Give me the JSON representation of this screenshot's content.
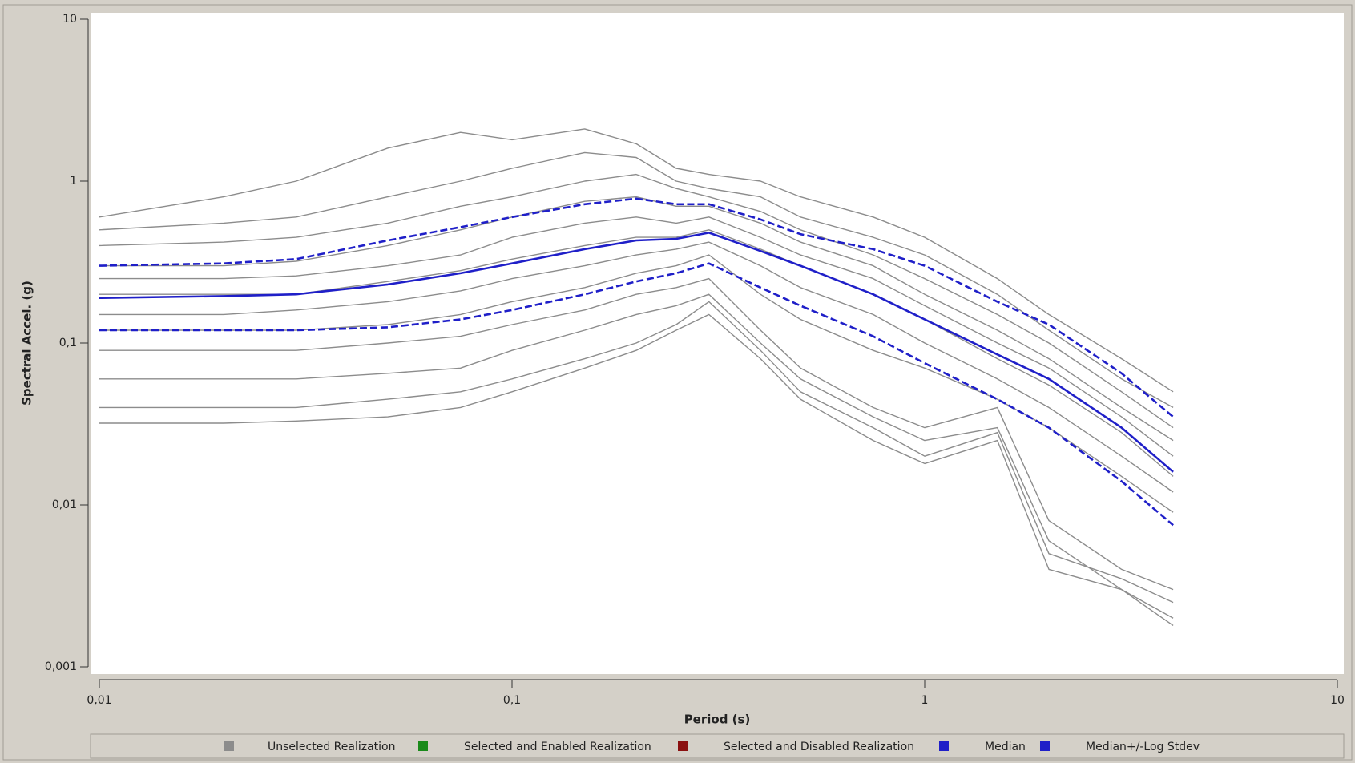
{
  "chart_data": {
    "type": "line",
    "log_x": true,
    "log_y": true,
    "xlabel": "Period (s)",
    "ylabel": "Spectral Accel. (g)",
    "xlim": [
      0.01,
      10
    ],
    "ylim": [
      0.001,
      10
    ],
    "xticks": [
      {
        "value": 0.01,
        "label": "0,01"
      },
      {
        "value": 0.1,
        "label": "0,1"
      },
      1,
      10
    ],
    "yticks": [
      {
        "value": 0.001,
        "label": "0,001"
      },
      {
        "value": 0.01,
        "label": "0,01"
      },
      {
        "value": 0.1,
        "label": "0,1"
      },
      1,
      10
    ],
    "x": [
      0.01,
      0.02,
      0.03,
      0.05,
      0.075,
      0.1,
      0.15,
      0.2,
      0.25,
      0.3,
      0.4,
      0.5,
      0.75,
      1,
      1.5,
      2,
      3,
      4
    ],
    "series": [
      {
        "name": "Unselected Realization",
        "color": "#8c8c8c",
        "style": "solid",
        "lines": [
          [
            0.6,
            0.8,
            1.0,
            1.6,
            2.0,
            1.8,
            2.1,
            1.7,
            1.2,
            1.1,
            1.0,
            0.8,
            0.6,
            0.45,
            0.25,
            0.15,
            0.08,
            0.05
          ],
          [
            0.5,
            0.55,
            0.6,
            0.8,
            1.0,
            1.2,
            1.5,
            1.4,
            1.0,
            0.9,
            0.8,
            0.6,
            0.45,
            0.35,
            0.2,
            0.12,
            0.06,
            0.04
          ],
          [
            0.4,
            0.42,
            0.45,
            0.55,
            0.7,
            0.8,
            1.0,
            1.1,
            0.9,
            0.8,
            0.65,
            0.5,
            0.35,
            0.25,
            0.15,
            0.1,
            0.05,
            0.03
          ],
          [
            0.3,
            0.3,
            0.32,
            0.4,
            0.5,
            0.6,
            0.75,
            0.8,
            0.7,
            0.7,
            0.55,
            0.42,
            0.3,
            0.2,
            0.12,
            0.08,
            0.04,
            0.025
          ],
          [
            0.25,
            0.25,
            0.26,
            0.3,
            0.35,
            0.45,
            0.55,
            0.6,
            0.55,
            0.6,
            0.45,
            0.35,
            0.25,
            0.17,
            0.1,
            0.07,
            0.035,
            0.02
          ],
          [
            0.2,
            0.2,
            0.2,
            0.24,
            0.28,
            0.33,
            0.4,
            0.45,
            0.45,
            0.5,
            0.38,
            0.3,
            0.2,
            0.14,
            0.08,
            0.055,
            0.028,
            0.015
          ],
          [
            0.15,
            0.15,
            0.16,
            0.18,
            0.21,
            0.25,
            0.3,
            0.35,
            0.38,
            0.42,
            0.3,
            0.22,
            0.15,
            0.1,
            0.06,
            0.04,
            0.02,
            0.012
          ],
          [
            0.12,
            0.12,
            0.12,
            0.13,
            0.15,
            0.18,
            0.22,
            0.27,
            0.3,
            0.35,
            0.2,
            0.14,
            0.09,
            0.07,
            0.045,
            0.03,
            0.015,
            0.009
          ],
          [
            0.09,
            0.09,
            0.09,
            0.1,
            0.11,
            0.13,
            0.16,
            0.2,
            0.22,
            0.25,
            0.12,
            0.07,
            0.04,
            0.03,
            0.04,
            0.008,
            0.004,
            0.003
          ],
          [
            0.06,
            0.06,
            0.06,
            0.065,
            0.07,
            0.09,
            0.12,
            0.15,
            0.17,
            0.2,
            0.1,
            0.06,
            0.035,
            0.025,
            0.03,
            0.006,
            0.003,
            0.002
          ],
          [
            0.04,
            0.04,
            0.04,
            0.045,
            0.05,
            0.06,
            0.08,
            0.1,
            0.13,
            0.18,
            0.09,
            0.05,
            0.03,
            0.02,
            0.028,
            0.005,
            0.0035,
            0.0025
          ],
          [
            0.032,
            0.032,
            0.033,
            0.035,
            0.04,
            0.05,
            0.07,
            0.09,
            0.12,
            0.15,
            0.08,
            0.045,
            0.025,
            0.018,
            0.025,
            0.004,
            0.003,
            0.0018
          ]
        ]
      },
      {
        "name": "Selected and Enabled Realization",
        "color": "#1a8a1a",
        "style": "solid",
        "lines": []
      },
      {
        "name": "Selected and Disabled Realization",
        "color": "#8b1010",
        "style": "solid",
        "lines": []
      },
      {
        "name": "Median",
        "color": "#1f1fc8",
        "style": "solid",
        "lines": [
          [
            0.19,
            0.195,
            0.2,
            0.23,
            0.27,
            0.31,
            0.38,
            0.43,
            0.44,
            0.48,
            0.37,
            0.3,
            0.2,
            0.14,
            0.085,
            0.06,
            0.03,
            0.016
          ]
        ]
      },
      {
        "name": "Median+/-Log Stdev",
        "color": "#1f1fc8",
        "style": "dashed",
        "lines": [
          [
            0.3,
            0.31,
            0.33,
            0.43,
            0.52,
            0.6,
            0.72,
            0.78,
            0.72,
            0.72,
            0.58,
            0.47,
            0.38,
            0.3,
            0.18,
            0.13,
            0.065,
            0.035
          ],
          [
            0.12,
            0.12,
            0.12,
            0.125,
            0.14,
            0.16,
            0.2,
            0.24,
            0.27,
            0.31,
            0.22,
            0.17,
            0.11,
            0.075,
            0.045,
            0.03,
            0.014,
            0.0075
          ]
        ]
      }
    ]
  }
}
